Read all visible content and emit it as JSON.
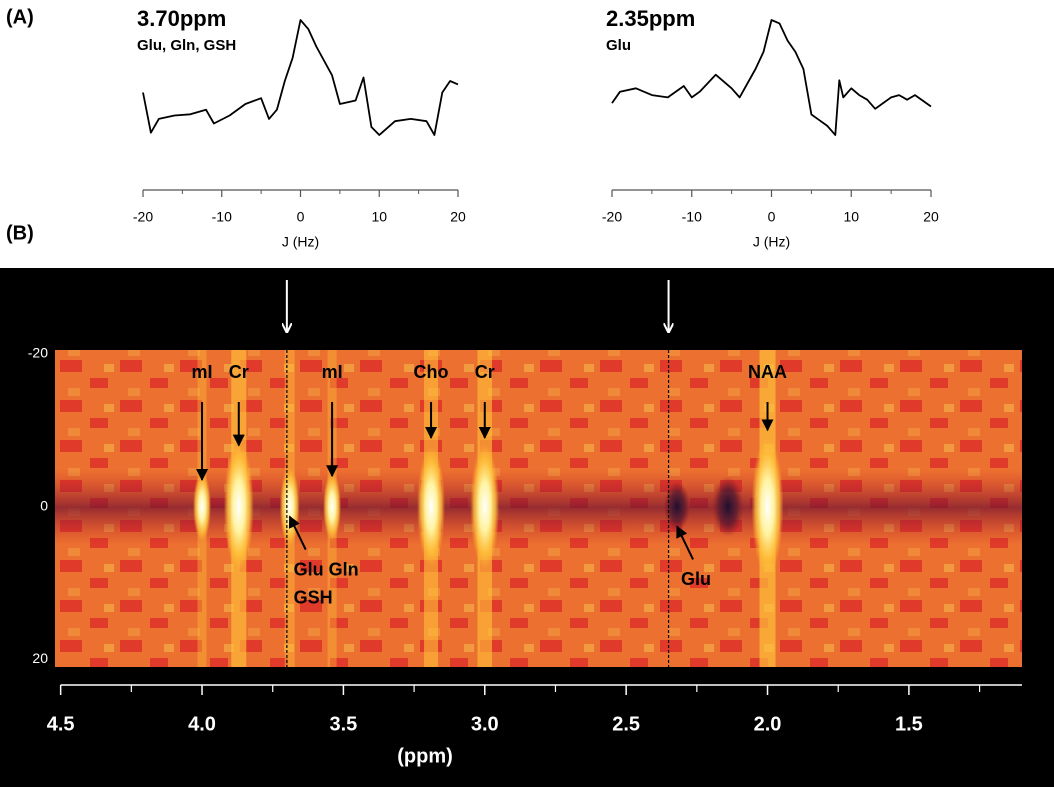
{
  "panels": [
    "(A)",
    "(B)"
  ],
  "chart_data": [
    {
      "type": "line",
      "title": "3.70ppm",
      "subtitle": "Glu, Gln, GSH",
      "x_label": "J (Hz)",
      "xlim": [
        -20,
        20
      ],
      "xticks": [
        -20,
        -10,
        0,
        10,
        20
      ],
      "xminorticks": [
        -15,
        -5,
        5,
        15
      ],
      "color": "#000000",
      "x": [
        -20,
        -19,
        -18,
        -16,
        -14,
        -12,
        -11,
        -9,
        -7,
        -5,
        -4,
        -3,
        -2,
        -1,
        0,
        1,
        2,
        4,
        5,
        7,
        8,
        9,
        10,
        12,
        14,
        16,
        17,
        18,
        19,
        20
      ],
      "values": [
        45,
        10,
        22,
        25,
        26,
        30,
        18,
        25,
        35,
        40,
        22,
        30,
        55,
        75,
        108,
        100,
        85,
        60,
        35,
        38,
        58,
        15,
        8,
        20,
        22,
        20,
        8,
        45,
        55,
        52
      ]
    },
    {
      "type": "line",
      "title": "2.35ppm",
      "subtitle": "Glu",
      "x_label": "J (Hz)",
      "xlim": [
        -20,
        20
      ],
      "xticks": [
        -20,
        -10,
        0,
        10,
        20
      ],
      "xminorticks": [
        -15,
        -5,
        5,
        15
      ],
      "color": "#000000",
      "x": [
        -20,
        -19,
        -17,
        -15,
        -13,
        -11,
        -10,
        -9,
        -7,
        -5,
        -4,
        -2,
        -1,
        0,
        1,
        2,
        3,
        4,
        5,
        6,
        7,
        8,
        8.5,
        9,
        10,
        11,
        12,
        13,
        14,
        15,
        16,
        17,
        18,
        20
      ],
      "values": [
        25,
        35,
        38,
        32,
        30,
        40,
        30,
        35,
        50,
        38,
        30,
        55,
        70,
        98,
        95,
        80,
        70,
        55,
        15,
        10,
        5,
        -3,
        45,
        30,
        38,
        32,
        28,
        20,
        25,
        30,
        32,
        28,
        32,
        22
      ]
    },
    {
      "type": "heatmap",
      "x_label": "(ppm)",
      "xlim": [
        4.52,
        1.1
      ],
      "xticks": [
        4.5,
        {
          "value": 4,
          "label": "4.0"
        },
        3.5,
        {
          "value": 3,
          "label": "3.0"
        },
        2.5,
        {
          "value": 2,
          "label": "2.0"
        },
        1.5
      ],
      "xminorticks": [
        4.25,
        3.75,
        3.25,
        2.75,
        2.25,
        1.75,
        1.25
      ],
      "ylim": [
        -20.5,
        21
      ],
      "yticks": [
        -20,
        0,
        20
      ],
      "markers": [
        3.7,
        2.35
      ],
      "peaks": [
        {
          "x": 4.0,
          "intensity": 0.3
        },
        {
          "x": 3.87,
          "intensity": 0.9
        },
        {
          "x": 3.69,
          "intensity": 0.4
        },
        {
          "x": 3.54,
          "intensity": 0.3
        },
        {
          "x": 3.19,
          "intensity": 0.8
        },
        {
          "x": 3.0,
          "intensity": 0.85
        },
        {
          "x": 2.32,
          "intensity": -0.6
        },
        {
          "x": 2.14,
          "intensity": -0.8
        },
        {
          "x": 2.0,
          "intensity": 1
        }
      ],
      "annotations": [
        {
          "text": [
            "mI"
          ],
          "x": 4.0,
          "y": -3.5,
          "position": "above"
        },
        {
          "text": [
            "Cr"
          ],
          "x": 3.87,
          "y": -8,
          "position": "above"
        },
        {
          "text": [
            "mI"
          ],
          "x": 3.54,
          "y": -4,
          "position": "above"
        },
        {
          "text": [
            "Cho"
          ],
          "x": 3.19,
          "y": -9,
          "position": "above"
        },
        {
          "text": [
            "Cr"
          ],
          "x": 3.0,
          "y": -9,
          "position": "above"
        },
        {
          "text": [
            "NAA"
          ],
          "x": 2.0,
          "y": -10,
          "position": "above"
        },
        {
          "text": [
            "Glu Gln",
            "GSH"
          ],
          "x": 3.69,
          "y": 1.3,
          "position": "below"
        },
        {
          "text": [
            "Glu"
          ],
          "x": 2.32,
          "y": 2.6,
          "position": "below"
        }
      ]
    }
  ]
}
